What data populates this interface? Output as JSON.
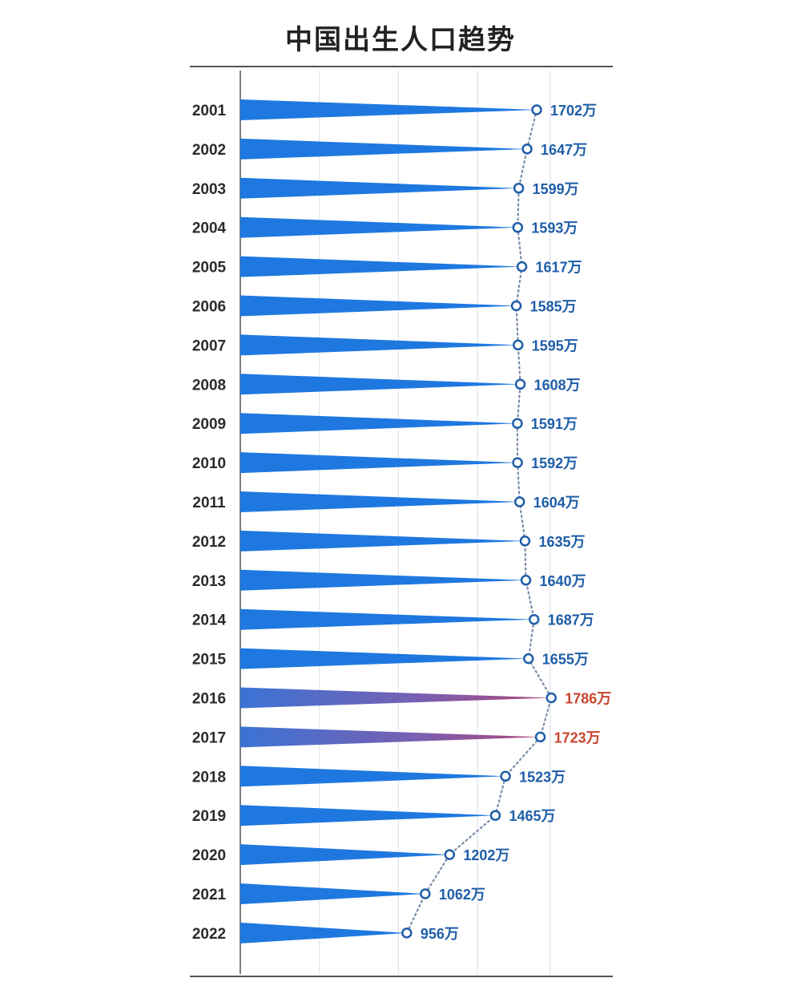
{
  "chart_data": {
    "type": "bar",
    "title": "中国出生人口趋势",
    "xlabel": "",
    "ylabel": "",
    "unit": "万",
    "xlim": [
      0,
      2000
    ],
    "categories": [
      "2001",
      "2002",
      "2003",
      "2004",
      "2005",
      "2006",
      "2007",
      "2008",
      "2009",
      "2010",
      "2011",
      "2012",
      "2013",
      "2014",
      "2015",
      "2016",
      "2017",
      "2018",
      "2019",
      "2020",
      "2021",
      "2022"
    ],
    "values": [
      1702,
      1647,
      1599,
      1593,
      1617,
      1585,
      1595,
      1608,
      1591,
      1592,
      1604,
      1635,
      1640,
      1687,
      1655,
      1786,
      1723,
      1523,
      1465,
      1202,
      1062,
      956
    ],
    "labels": [
      "1702万",
      "1647万",
      "1599万",
      "1593万",
      "1617万",
      "1585万",
      "1595万",
      "1608万",
      "1591万",
      "1592万",
      "1604万",
      "1635万",
      "1640万",
      "1687万",
      "1655万",
      "1786万",
      "1723万",
      "1523万",
      "1465万",
      "1202万",
      "1062万",
      "956万"
    ],
    "highlighted": [
      "2016",
      "2017"
    ],
    "colors": {
      "bar": "#1e78e0",
      "highlight": "#7b5aa6",
      "label": "#1f5ea8",
      "highlight_label": "#c9452e",
      "marker": "#1f5ea8",
      "grid": "#dfe3ea",
      "axis": "#555555"
    }
  }
}
